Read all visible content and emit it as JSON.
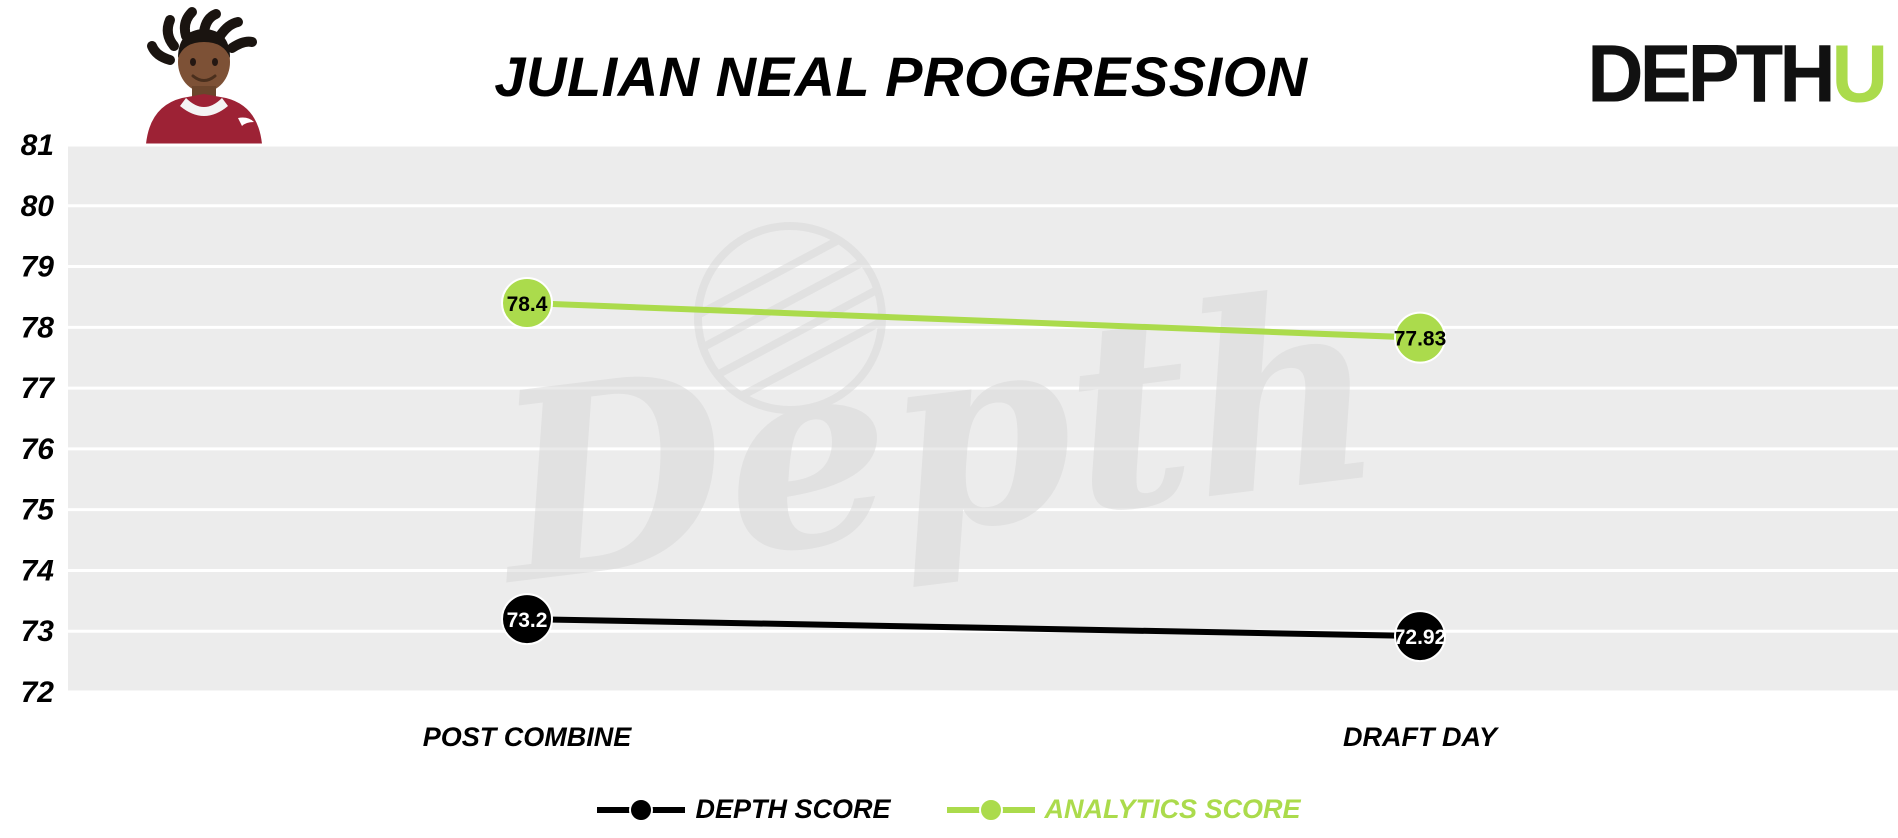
{
  "header": {
    "title": "JULIAN NEAL PROGRESSION",
    "logo": {
      "text_black": "DEPTH",
      "text_green": "U"
    },
    "player_photo_icon": "julian-neal-headshot"
  },
  "colors": {
    "depth_score": "#000000",
    "analytics_score": "#abdb4c",
    "plot_band": "#ececec",
    "gridline": "#ffffff",
    "jersey": "#9d2235",
    "watermark": "#d9d9d9"
  },
  "chart_data": {
    "type": "line",
    "title": "JULIAN NEAL PROGRESSION",
    "categories": [
      "POST COMBINE",
      "DRAFT DAY"
    ],
    "series": [
      {
        "name": "DEPTH SCORE",
        "color": "#000000",
        "values": [
          73.2,
          72.92
        ],
        "labels": [
          "73.2",
          "72.92"
        ],
        "label_color": "#ffffff"
      },
      {
        "name": "ANALYTICS SCORE",
        "color": "#abdb4c",
        "values": [
          78.4,
          77.83
        ],
        "labels": [
          "78.4",
          "77.83"
        ],
        "label_color": "#000000"
      }
    ],
    "xlabel": "",
    "ylabel": "",
    "ylim": [
      72,
      81
    ],
    "yticks": [
      81,
      80,
      79,
      78,
      77,
      76,
      75,
      74,
      73,
      72
    ],
    "grid": "horizontal-white-on-gray-bands",
    "legend_position": "bottom-center",
    "watermark": "Depth"
  },
  "legend": {
    "items": [
      {
        "label": "DEPTH SCORE",
        "color": "#000000"
      },
      {
        "label": "ANALYTICS SCORE",
        "color": "#abdb4c"
      }
    ]
  }
}
